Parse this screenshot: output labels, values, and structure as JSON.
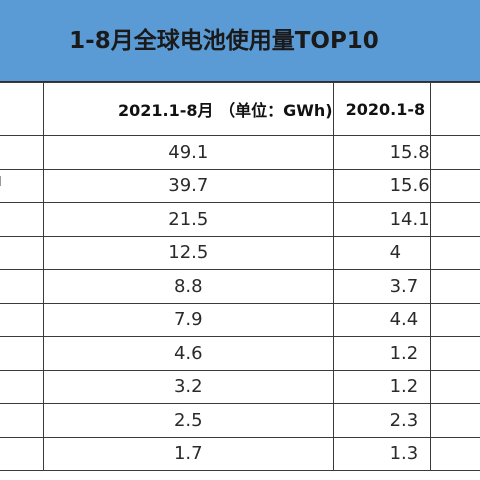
{
  "title": "1-8月全球电池使用量TOP10",
  "headers": {
    "col_2021": "2021.1-8月 （单位：GWh)",
    "col_2020": "2020.1-8"
  },
  "rows": [
    {
      "v2021": "49.1",
      "v2020": "15.8"
    },
    {
      "v2021": "39.7",
      "v2020": "15.6"
    },
    {
      "v2021": "21.5",
      "v2020": "14.1"
    },
    {
      "v2021": "12.5",
      "v2020": "4"
    },
    {
      "v2021": "8.8",
      "v2020": "3.7"
    },
    {
      "v2021": "7.9",
      "v2020": "4.4"
    },
    {
      "v2021": "4.6",
      "v2020": "1.2"
    },
    {
      "v2021": "3.2",
      "v2020": "1.2"
    },
    {
      "v2021": "2.5",
      "v2020": "2.3"
    },
    {
      "v2021": "1.7",
      "v2020": "1.3"
    }
  ],
  "colors": {
    "title_background": "#5b9bd5",
    "grid_line": "#3a3a3a"
  }
}
